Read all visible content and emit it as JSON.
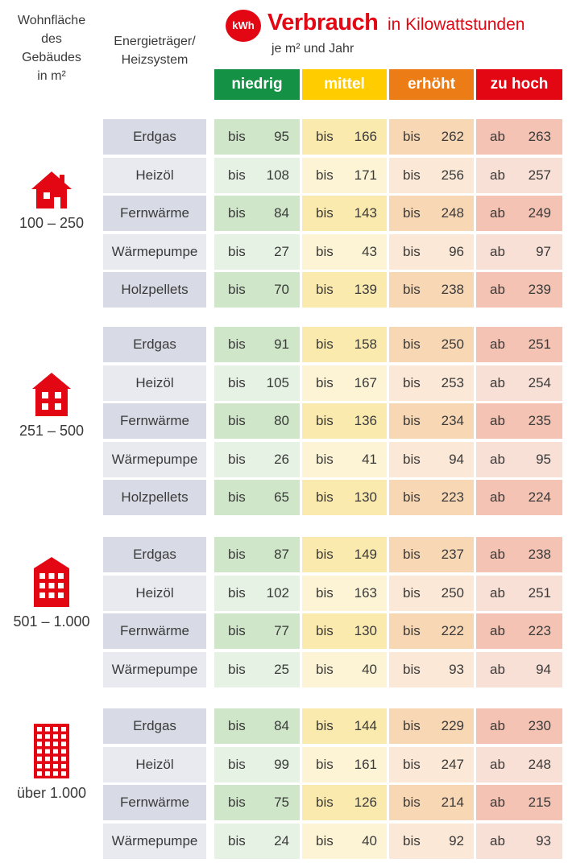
{
  "header": {
    "area_col": [
      "Wohnfläche",
      "des",
      "Gebäudes",
      "in m²"
    ],
    "energy_col": [
      "Energieträger/",
      "Heizsystem"
    ],
    "badge": "kWh",
    "title_main": "Verbrauch",
    "title_rest": "in Kilowattstunden",
    "subtitle": "je m² und Jahr"
  },
  "colors": {
    "niedrig": "#149144",
    "mittel": "#ffcc00",
    "erhoeht": "#ec7d16",
    "zu_hoch": "#e30613",
    "accent": "#e30613"
  },
  "chart_data": {
    "type": "table",
    "categories": [
      "niedrig",
      "mittel",
      "erhöht",
      "zu hoch"
    ],
    "prefixes": [
      "bis",
      "bis",
      "bis",
      "ab"
    ],
    "groups": [
      {
        "range": "100 – 250",
        "icon": "small-house-icon",
        "rows": [
          {
            "label": "Erdgas",
            "values": [
              95,
              166,
              262,
              263
            ]
          },
          {
            "label": "Heizöl",
            "values": [
              108,
              171,
              256,
              257
            ]
          },
          {
            "label": "Fernwärme",
            "values": [
              84,
              143,
              248,
              249
            ]
          },
          {
            "label": "Wärmepumpe",
            "values": [
              27,
              43,
              96,
              97
            ]
          },
          {
            "label": "Holzpellets",
            "values": [
              70,
              139,
              238,
              239
            ]
          }
        ]
      },
      {
        "range": "251 – 500",
        "icon": "multi-family-house-icon",
        "rows": [
          {
            "label": "Erdgas",
            "values": [
              91,
              158,
              250,
              251
            ]
          },
          {
            "label": "Heizöl",
            "values": [
              105,
              167,
              253,
              254
            ]
          },
          {
            "label": "Fernwärme",
            "values": [
              80,
              136,
              234,
              235
            ]
          },
          {
            "label": "Wärmepumpe",
            "values": [
              26,
              41,
              94,
              95
            ]
          },
          {
            "label": "Holzpellets",
            "values": [
              65,
              130,
              223,
              224
            ]
          }
        ]
      },
      {
        "range": "501 – 1.000",
        "icon": "apartment-building-icon",
        "rows": [
          {
            "label": "Erdgas",
            "values": [
              87,
              149,
              237,
              238
            ]
          },
          {
            "label": "Heizöl",
            "values": [
              102,
              163,
              250,
              251
            ]
          },
          {
            "label": "Fernwärme",
            "values": [
              77,
              130,
              222,
              223
            ]
          },
          {
            "label": "Wärmepumpe",
            "values": [
              25,
              40,
              93,
              94
            ]
          }
        ]
      },
      {
        "range": "über 1.000",
        "icon": "high-rise-building-icon",
        "rows": [
          {
            "label": "Erdgas",
            "values": [
              84,
              144,
              229,
              230
            ]
          },
          {
            "label": "Heizöl",
            "values": [
              99,
              161,
              247,
              248
            ]
          },
          {
            "label": "Fernwärme",
            "values": [
              75,
              126,
              214,
              215
            ]
          },
          {
            "label": "Wärmepumpe",
            "values": [
              24,
              40,
              92,
              93
            ]
          }
        ]
      }
    ]
  }
}
